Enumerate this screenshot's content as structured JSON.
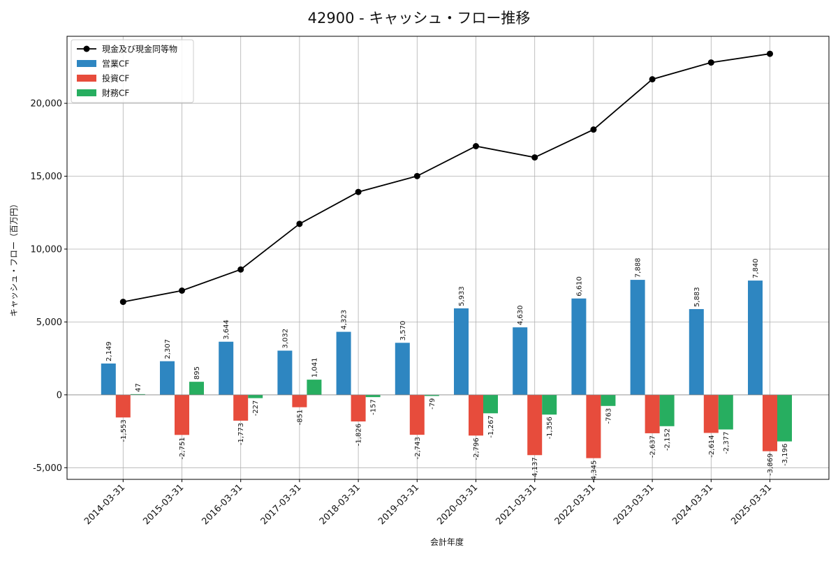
{
  "chart_data": {
    "type": "bar",
    "title": "42900 - キャッシュ・フロー推移",
    "xlabel": "会計年度",
    "ylabel": "キャッシュ・フロー（百万円）",
    "ylim": [
      -5800,
      24600
    ],
    "yticks": [
      -5000,
      0,
      5000,
      10000,
      15000,
      20000
    ],
    "ytick_labels": [
      "-5,000",
      "0",
      "5,000",
      "10,000",
      "15,000",
      "20,000"
    ],
    "grid": true,
    "legend_position": "top-left",
    "categories": [
      "2014-03-31",
      "2015-03-31",
      "2016-03-31",
      "2017-03-31",
      "2018-03-31",
      "2019-03-31",
      "2020-03-31",
      "2021-03-31",
      "2022-03-31",
      "2023-03-31",
      "2024-03-31",
      "2025-03-31"
    ],
    "line_series": {
      "name": "現金及び現金同等物",
      "color": "#000000",
      "values": [
        6380,
        7150,
        8600,
        11730,
        13920,
        15010,
        17060,
        16290,
        18200,
        21650,
        22800,
        23400
      ]
    },
    "series": [
      {
        "name": "営業CF",
        "color": "#2e86c1",
        "values": [
          2149,
          2307,
          3644,
          3032,
          4323,
          3570,
          5933,
          4630,
          6610,
          7888,
          5883,
          7840
        ],
        "labels": [
          "2,149",
          "2,307",
          "3,644",
          "3,032",
          "4,323",
          "3,570",
          "5,933",
          "4,630",
          "6,610",
          "7,888",
          "5,883",
          "7,840"
        ]
      },
      {
        "name": "投資CF",
        "color": "#e74c3c",
        "values": [
          -1553,
          -2751,
          -1773,
          -851,
          -1826,
          -2743,
          -2796,
          -4137,
          -4345,
          -2637,
          -2614,
          -3869
        ],
        "labels": [
          "-1,553",
          "-2,751",
          "-1,773",
          "-851",
          "-1,826",
          "-2,743",
          "-2,796",
          "-4,137",
          "-4,345",
          "-2,637",
          "-2,614",
          "-3,869"
        ]
      },
      {
        "name": "財務CF",
        "color": "#27ae60",
        "values": [
          47,
          895,
          -227,
          1041,
          -157,
          -79,
          -1267,
          -1356,
          -763,
          -2152,
          -2377,
          -3196
        ],
        "labels": [
          "47",
          "895",
          "-227",
          "1,041",
          "-157",
          "-79",
          "-1,267",
          "-1,356",
          "-763",
          "-2,152",
          "-2,377",
          "-3,196"
        ]
      }
    ]
  }
}
